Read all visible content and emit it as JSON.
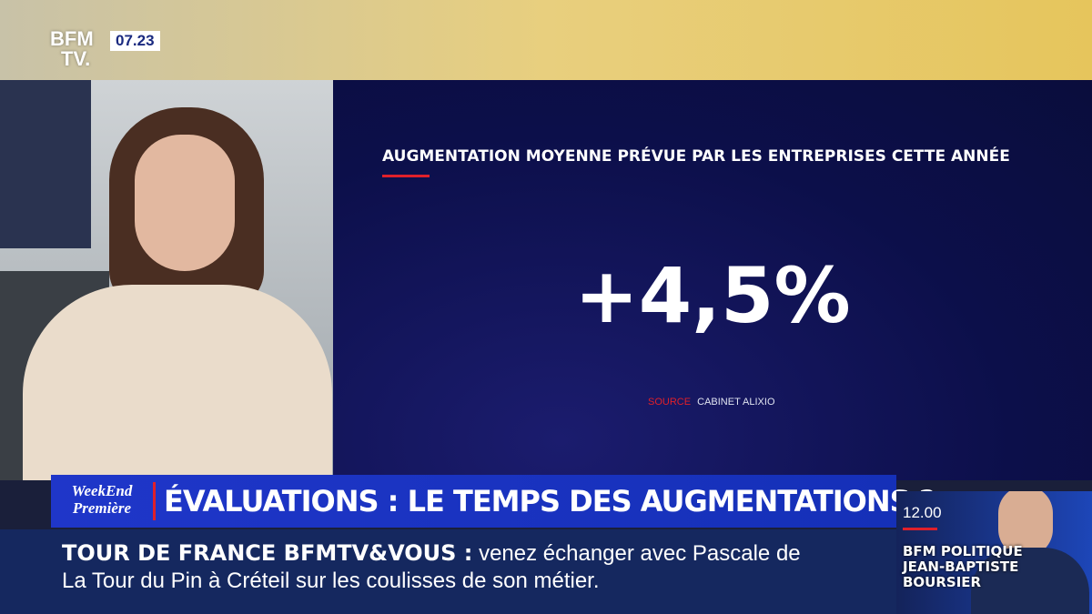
{
  "channel": {
    "logo_top": "BFM",
    "logo_bottom": "TV.",
    "time": "07.23"
  },
  "graphic": {
    "title": "AUGMENTATION MOYENNE PRÉVUE PAR LES ENTREPRISES CETTE ANNÉE",
    "value": "+4,5%",
    "source_label": "SOURCE",
    "source": "CABINET ALIXIO"
  },
  "show": {
    "logo_line1": "WeekEnd",
    "logo_line2": "Première"
  },
  "headline": "ÉVALUATIONS : LE TEMPS DES AUGMENTATIONS ?",
  "ticker": {
    "label": "TOUR DE FRANCE BFMTV&VOUS :",
    "text_line1": "venez échanger avec Pascale de",
    "text_line2": "La Tour du Pin à Créteil sur les coulisses de son métier."
  },
  "next": {
    "time": "12.00",
    "line1": "BFM POLITIQUE",
    "line2": "JEAN-BAPTISTE",
    "line3": "BOURSIER"
  }
}
